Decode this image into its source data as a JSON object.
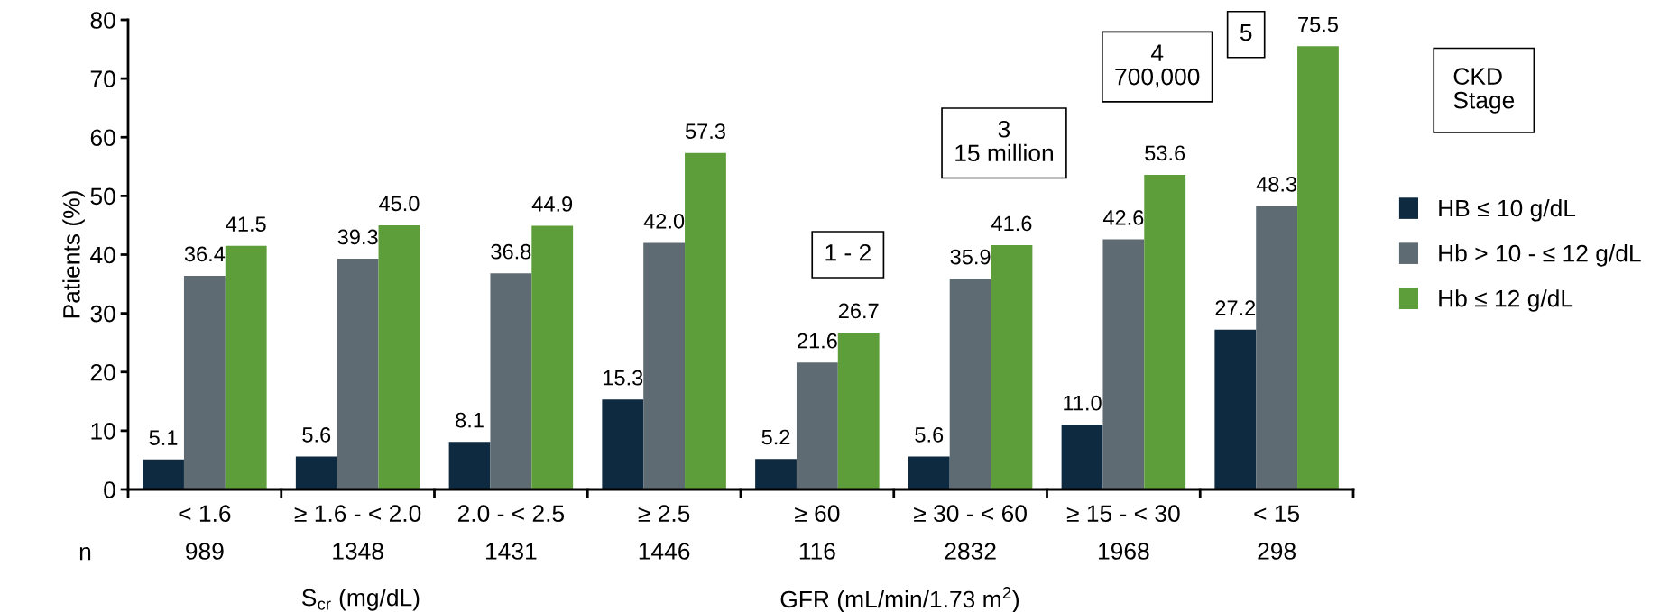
{
  "chart_data": {
    "type": "bar",
    "ylabel": "Patients (%)",
    "categories": [
      "< 1.6\n989",
      "≥ 1.6 - < 2.0\n1348",
      "2.0 - < 2.5\n1431",
      "≥ 2.5\n1446",
      "≥ 60\n116",
      "≥ 30 - < 60\n2832",
      "≥ 15 - < 30\n1968",
      "< 15\n298"
    ],
    "series": [
      {
        "name": "HB ≤ 10 g/dL",
        "color": "#0d2a40",
        "values": [
          5.1,
          5.6,
          8.1,
          15.3,
          5.2,
          5.6,
          11.0,
          27.2
        ],
        "value_labels": [
          "5.1",
          "5.6",
          "8.1",
          "15.3",
          "5.2",
          "5.6",
          "11.0",
          "27.2"
        ]
      },
      {
        "name": "Hb > 10 - ≤ 12 g/dL",
        "color": "#5f6b73",
        "values": [
          36.4,
          39.3,
          36.8,
          42.0,
          21.6,
          35.9,
          42.6,
          48.3
        ],
        "value_labels": [
          "36.4",
          "39.3",
          "36.8",
          "42.0",
          "21.6",
          "35.9",
          "42.6",
          "48.3"
        ]
      },
      {
        "name": "Hb ≤ 12 g/dL",
        "color": "#5e9e3a",
        "values": [
          41.5,
          45.0,
          44.9,
          57.3,
          26.7,
          41.6,
          53.6,
          75.5
        ],
        "value_labels": [
          "41.5",
          "45.0",
          "44.9",
          "57.3",
          "26.7",
          "41.6",
          "53.6",
          "75.5"
        ]
      }
    ],
    "ylim": [
      0,
      80
    ],
    "yticks": [
      0,
      10,
      20,
      30,
      40,
      50,
      60,
      70,
      80
    ],
    "grid": false,
    "legend": "right",
    "annotations": [
      "n",
      "S$_{cr}$ (mg/dL)",
      "GFR (mL/min/1.73 m$^{2}$)",
      "1 - 2",
      "3\n15 million",
      "4\n700,000",
      "5",
      "CKD\nStage"
    ]
  }
}
